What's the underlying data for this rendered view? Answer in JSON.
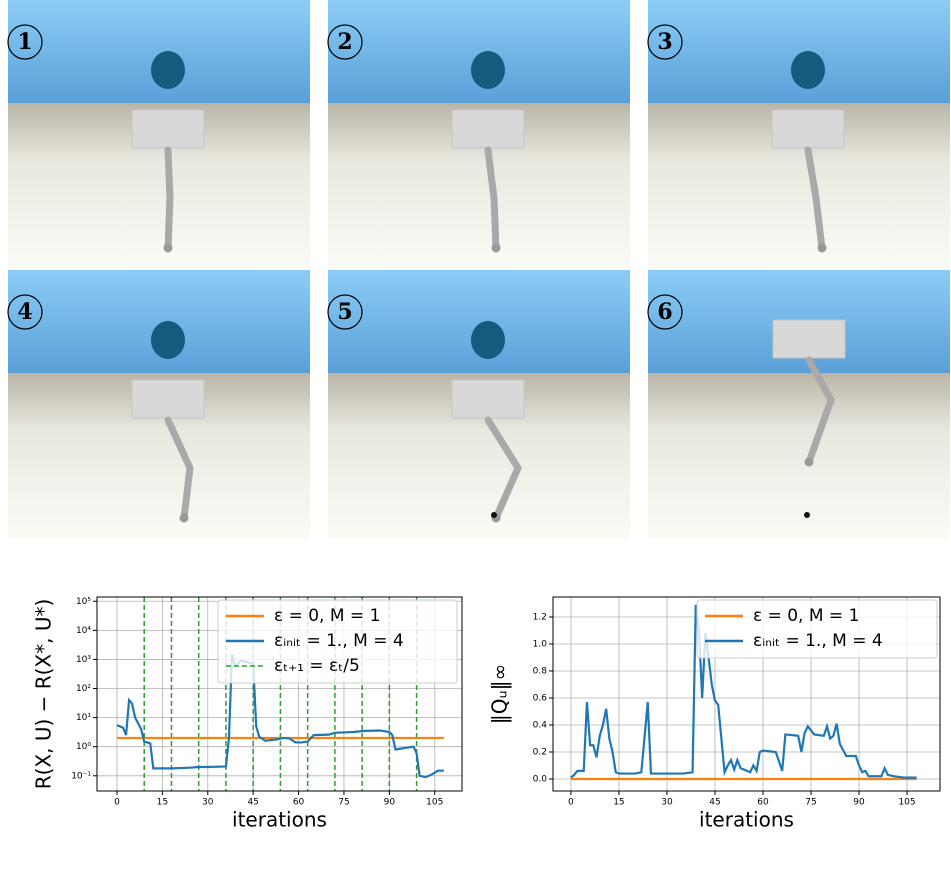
{
  "panels": [
    {
      "label": "1"
    },
    {
      "label": "2"
    },
    {
      "label": "3"
    },
    {
      "label": "4"
    },
    {
      "label": "5"
    },
    {
      "label": "6"
    }
  ],
  "chart_data": [
    {
      "type": "line",
      "log_y": true,
      "grid": true,
      "legend": "upper right",
      "xlabel": "iterations",
      "ylabel": "R(X, U) − R(X*, U*)",
      "xlim": [
        -6.6,
        114
      ],
      "xticks": [
        0,
        15,
        30,
        45,
        60,
        75,
        90,
        105
      ],
      "ylim": [
        0.03,
        140000
      ],
      "yticks": [
        {
          "value": 0.1,
          "label": "10⁻¹"
        },
        {
          "value": 1,
          "label": "10⁰"
        },
        {
          "value": 10,
          "label": "10¹"
        },
        {
          "value": 100,
          "label": "10²"
        },
        {
          "value": 1000,
          "label": "10³"
        },
        {
          "value": 10000,
          "label": "10⁴"
        },
        {
          "value": 100000,
          "label": "10⁵"
        }
      ],
      "series": [
        {
          "name": "ε = 0, M = 1",
          "color": "#ff7f0e",
          "x": [
            0,
            108
          ],
          "values": [
            2,
            2
          ]
        },
        {
          "name": "εᵢₙᵢₜ = 1., M = 4",
          "color": "#1f77b4",
          "x": [
            0,
            2,
            3,
            4,
            5,
            6,
            8,
            9,
            11,
            12,
            18,
            24,
            27,
            30,
            36,
            37,
            38,
            39,
            41,
            43,
            45,
            46,
            47,
            49,
            51,
            53,
            55,
            57,
            59,
            61,
            63,
            65,
            70,
            72,
            78,
            82,
            87,
            90,
            91,
            92,
            95,
            98,
            99,
            100,
            102,
            104,
            106,
            108
          ],
          "values": [
            5.5,
            4.5,
            2.5,
            40,
            30,
            10,
            4,
            1.5,
            1.3,
            0.18,
            0.18,
            0.19,
            0.2,
            0.2,
            0.21,
            2,
            1500,
            600,
            900,
            800,
            700,
            5,
            2.2,
            1.6,
            1.7,
            1.8,
            2,
            1.9,
            1.4,
            1.4,
            1.5,
            2.5,
            2.6,
            3,
            3.2,
            3.5,
            3.6,
            3.2,
            2.5,
            0.8,
            0.9,
            1,
            0.6,
            0.1,
            0.09,
            0.11,
            0.15,
            0.15
          ]
        }
      ],
      "vlines": {
        "name": "εₜ₊₁ = εₜ/5",
        "color": "#2ca02c",
        "values": [
          9,
          18,
          27,
          36,
          45,
          54,
          63,
          72,
          81,
          90,
          99
        ]
      }
    },
    {
      "type": "line",
      "grid": true,
      "legend": "upper right",
      "xlabel": "iterations",
      "ylabel": "‖Qᵤ‖∞",
      "xlim": [
        -5.6,
        115.3
      ],
      "xticks": [
        0,
        15,
        30,
        45,
        60,
        75,
        90,
        105
      ],
      "ylim": [
        -0.089,
        1.348
      ],
      "yticks": [
        {
          "value": 0,
          "label": "0.0"
        },
        0.2,
        0.4,
        0.6,
        0.8,
        {
          "value": 1,
          "label": "1.0"
        },
        1.2
      ],
      "series": [
        {
          "name": "ε = 0, M = 1",
          "color": "#ff7f0e",
          "x": [
            0,
            108
          ],
          "values": [
            0,
            0
          ]
        },
        {
          "name": "εᵢₙᵢₜ = 1., M = 4",
          "color": "#1f77b4",
          "x": [
            0,
            1,
            2,
            4,
            5,
            6,
            7,
            8,
            9,
            10,
            11,
            12,
            13,
            14,
            15,
            20,
            22,
            24,
            25,
            27,
            35,
            38,
            39,
            40,
            41,
            42,
            43,
            44,
            45,
            46,
            47,
            48,
            49,
            50,
            51,
            52,
            53,
            56,
            57,
            58,
            59,
            60,
            64,
            66,
            67,
            71,
            72,
            73,
            74,
            76,
            79,
            80,
            81,
            82,
            83,
            84,
            86,
            89,
            90,
            91,
            92,
            93,
            97,
            98,
            99,
            101,
            104,
            108
          ],
          "values": [
            0.01,
            0.03,
            0.06,
            0.06,
            0.57,
            0.25,
            0.25,
            0.16,
            0.32,
            0.4,
            0.52,
            0.3,
            0.2,
            0.05,
            0.04,
            0.04,
            0.05,
            0.57,
            0.04,
            0.04,
            0.04,
            0.05,
            1.29,
            1.1,
            0.6,
            1.08,
            0.9,
            0.7,
            0.58,
            0.55,
            0.3,
            0.05,
            0.1,
            0.14,
            0.07,
            0.14,
            0.08,
            0.05,
            0.1,
            0.06,
            0.2,
            0.21,
            0.2,
            0.06,
            0.33,
            0.32,
            0.2,
            0.34,
            0.39,
            0.33,
            0.32,
            0.39,
            0.3,
            0.32,
            0.41,
            0.26,
            0.17,
            0.17,
            0.1,
            0.05,
            0.06,
            0.02,
            0.02,
            0.08,
            0.03,
            0.02,
            0.01,
            0.01
          ]
        }
      ]
    }
  ]
}
